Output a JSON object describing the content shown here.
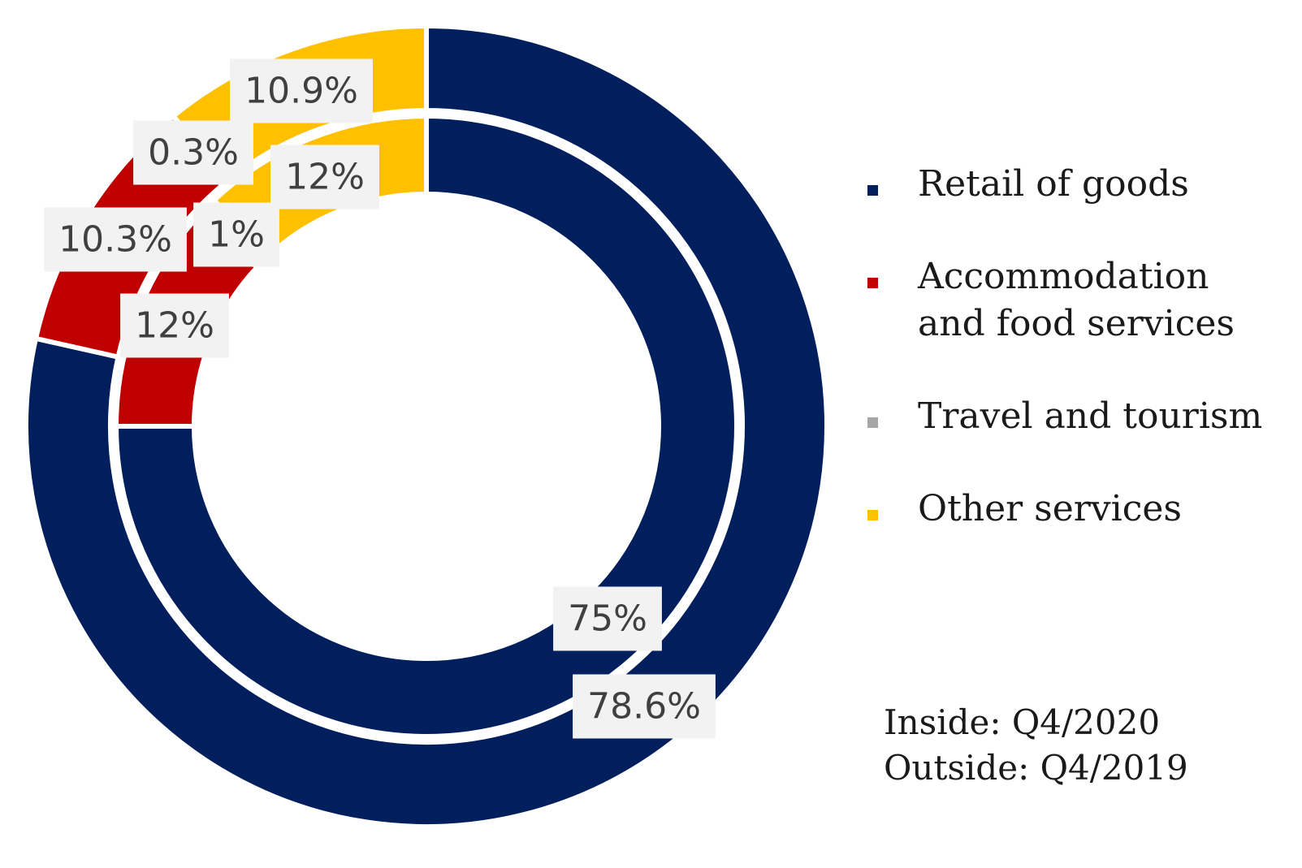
{
  "chart_data": {
    "type": "pie",
    "variant": "nested-donut",
    "categories": [
      "Retail of goods",
      "Accommodation and food services",
      "Travel and tourism",
      "Other services"
    ],
    "colors": [
      "#001f5c",
      "#c00000",
      "#a6a6a6",
      "#ffc000"
    ],
    "series": [
      {
        "ring": "outer",
        "values": [
          78.6,
          10.3,
          0.3,
          10.9
        ],
        "labels": [
          "78.6%",
          "10.3%",
          "0.3%",
          "10.9%"
        ]
      },
      {
        "ring": "inner",
        "values": [
          75,
          12,
          1,
          12
        ],
        "labels": [
          "75%",
          "12%",
          "1%",
          "12%"
        ]
      }
    ],
    "legend_position": "right",
    "annotations": [
      "Inside: Q4/2020",
      "Outside: Q4/2019"
    ]
  }
}
